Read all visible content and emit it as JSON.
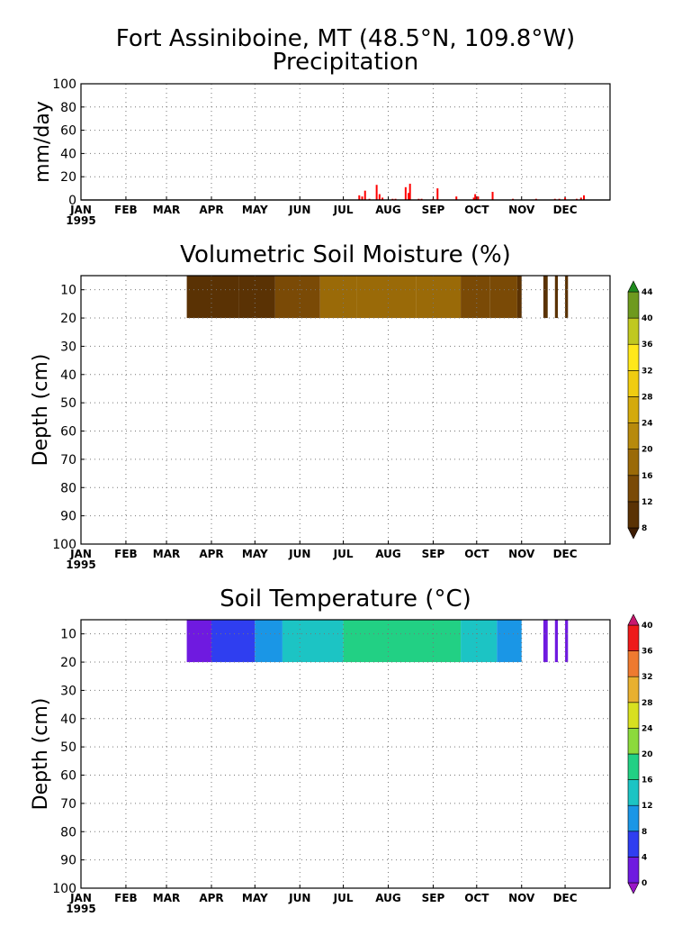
{
  "figure": {
    "title_line1": "Fort Assiniboine, MT (48.5°N, 109.8°W)",
    "year_label": "1995",
    "months": [
      "JAN",
      "FEB",
      "MAR",
      "APR",
      "MAY",
      "JUN",
      "JUL",
      "AUG",
      "SEP",
      "OCT",
      "NOV",
      "DEC"
    ]
  },
  "chart_data": [
    {
      "type": "bar",
      "title": "Precipitation",
      "ylabel": "mm/day",
      "ylim": [
        0,
        100
      ],
      "yticks": [
        0,
        20,
        40,
        60,
        80,
        100
      ],
      "grid": true,
      "color": "#ff0000",
      "x": [
        "1995-07-12",
        "1995-07-14",
        "1995-07-16",
        "1995-07-19",
        "1995-07-24",
        "1995-07-26",
        "1995-07-28",
        "1995-08-04",
        "1995-08-06",
        "1995-08-13",
        "1995-08-15",
        "1995-08-16",
        "1995-08-22",
        "1995-08-24",
        "1995-09-01",
        "1995-09-04",
        "1995-09-17",
        "1995-09-29",
        "1995-09-30",
        "1995-10-02",
        "1995-10-12",
        "1995-10-26",
        "1995-11-11",
        "1995-11-24",
        "1995-11-27",
        "1995-12-01",
        "1995-12-09",
        "1995-12-12",
        "1995-12-14"
      ],
      "values": [
        4,
        3,
        8,
        1,
        13,
        5,
        2,
        1,
        1,
        11,
        6,
        14,
        1,
        1,
        1,
        10,
        3,
        2,
        5,
        3,
        7,
        1,
        1,
        1,
        1,
        2,
        1,
        2,
        4
      ]
    },
    {
      "type": "heatmap",
      "title": "Volumetric Soil Moisture (%)",
      "ylabel": "Depth (cm)",
      "yticks": [
        10,
        20,
        30,
        40,
        50,
        60,
        70,
        80,
        90,
        100
      ],
      "ylim": [
        100,
        5
      ],
      "colorbar": {
        "levels": [
          8,
          12,
          16,
          20,
          24,
          28,
          32,
          36,
          40,
          44
        ],
        "colors": [
          "#3d1c03",
          "#5a3204",
          "#7a4a06",
          "#9a6a08",
          "#b78a0c",
          "#d4aa0c",
          "#f0cc10",
          "#ffe81a",
          "#c0c820",
          "#6e9a1e",
          "#1f8a1e"
        ]
      },
      "depths_cm": [
        10,
        20
      ],
      "segments": [
        {
          "start": "1995-03-15",
          "end": "1995-04-01",
          "value": 8
        },
        {
          "start": "1995-04-01",
          "end": "1995-04-20",
          "value": 8
        },
        {
          "start": "1995-04-20",
          "end": "1995-05-15",
          "value": 10
        },
        {
          "start": "1995-05-15",
          "end": "1995-06-15",
          "value": 14
        },
        {
          "start": "1995-06-15",
          "end": "1995-07-10",
          "value": 17
        },
        {
          "start": "1995-07-10",
          "end": "1995-08-20",
          "value": 18
        },
        {
          "start": "1995-08-20",
          "end": "1995-09-20",
          "value": 17
        },
        {
          "start": "1995-09-20",
          "end": "1995-10-10",
          "value": 15
        },
        {
          "start": "1995-10-10",
          "end": "1995-10-29",
          "value": 12
        },
        {
          "start": "1995-10-29",
          "end": "1995-11-01",
          "value": 8
        },
        {
          "start": "1995-11-16",
          "end": "1995-11-19",
          "value": 8
        },
        {
          "start": "1995-11-24",
          "end": "1995-11-26",
          "value": 8
        },
        {
          "start": "1995-12-01",
          "end": "1995-12-03",
          "value": 8
        }
      ]
    },
    {
      "type": "heatmap",
      "title": "Soil Temperature (°C)",
      "ylabel": "Depth (cm)",
      "yticks": [
        10,
        20,
        30,
        40,
        50,
        60,
        70,
        80,
        90,
        100
      ],
      "ylim": [
        100,
        5
      ],
      "colorbar": {
        "levels": [
          0,
          4,
          8,
          12,
          16,
          20,
          24,
          28,
          32,
          36,
          40
        ],
        "colors": [
          "#9a16c8",
          "#6f1ae0",
          "#2f3ef0",
          "#1a96e6",
          "#1cc4c4",
          "#22d084",
          "#8cda3c",
          "#d8e020",
          "#e8b030",
          "#ee7a30",
          "#ee1a1a",
          "#c8186e"
        ]
      },
      "depths_cm": [
        10,
        20
      ],
      "segments": [
        {
          "start": "1995-03-15",
          "end": "1995-04-01",
          "value": 2
        },
        {
          "start": "1995-04-01",
          "end": "1995-05-01",
          "value": 6
        },
        {
          "start": "1995-05-01",
          "end": "1995-05-20",
          "value": 10
        },
        {
          "start": "1995-05-20",
          "end": "1995-07-01",
          "value": 13
        },
        {
          "start": "1995-07-01",
          "end": "1995-09-20",
          "value": 17
        },
        {
          "start": "1995-09-20",
          "end": "1995-10-15",
          "value": 14
        },
        {
          "start": "1995-10-15",
          "end": "1995-11-01",
          "value": 9
        },
        {
          "start": "1995-11-16",
          "end": "1995-11-19",
          "value": 2
        },
        {
          "start": "1995-11-24",
          "end": "1995-11-26",
          "value": 2
        },
        {
          "start": "1995-12-01",
          "end": "1995-12-03",
          "value": 2
        }
      ]
    }
  ]
}
